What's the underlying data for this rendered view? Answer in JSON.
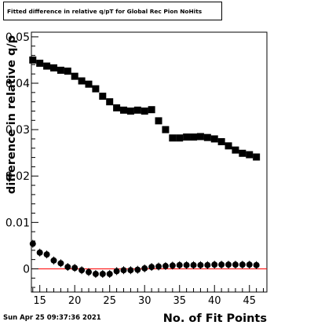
{
  "title": "Fitted difference in relative q/pT for Global Rec Pion NoHits",
  "timestamp": "Sun Apr 25 09:37:36 2021",
  "colors": {
    "zero_line": "#ff0000",
    "marker": "#000000"
  },
  "chart_data": {
    "type": "scatter",
    "title": "Fitted difference in relative q/pT for Global Rec Pion NoHits",
    "xlabel": "No. of Fit Points",
    "ylabel": "difference in relative q/p",
    "xlim": [
      13.8,
      47.5
    ],
    "ylim": [
      -0.005,
      0.051
    ],
    "x_ticks": [
      15,
      20,
      25,
      30,
      35,
      40,
      45
    ],
    "x_tick_labels": [
      "15",
      "20",
      "25",
      "30",
      "35",
      "40",
      "45"
    ],
    "y_ticks": [
      0,
      0.01,
      0.02,
      0.03,
      0.04,
      0.05
    ],
    "y_tick_labels": [
      "0",
      "0.01",
      "0.02",
      "0.03",
      "0.04",
      "0.05"
    ],
    "zero_line": 0,
    "grid": false,
    "series": [
      {
        "marker": "square",
        "x": [
          14,
          15,
          16,
          17,
          18,
          19,
          20,
          21,
          22,
          23,
          24,
          25,
          26,
          27,
          28,
          29,
          30,
          31,
          32,
          33,
          34,
          35,
          36,
          37,
          38,
          39,
          40,
          41,
          42,
          43,
          44,
          45,
          46
        ],
        "y": [
          0.045,
          0.0443,
          0.0437,
          0.0433,
          0.0428,
          0.0426,
          0.0415,
          0.0405,
          0.0398,
          0.0388,
          0.0372,
          0.036,
          0.0347,
          0.0342,
          0.034,
          0.0342,
          0.034,
          0.0343,
          0.0319,
          0.03,
          0.0282,
          0.0282,
          0.0284,
          0.0284,
          0.0285,
          0.0283,
          0.028,
          0.0274,
          0.0265,
          0.0256,
          0.0249,
          0.0246,
          0.0241
        ]
      },
      {
        "marker": "circle",
        "x": [
          14,
          15,
          16,
          17,
          18,
          19,
          20,
          21,
          22,
          23,
          24,
          25,
          26,
          27,
          28,
          29,
          30,
          31,
          32,
          33,
          34,
          35,
          36,
          37,
          38,
          39,
          40,
          41,
          42,
          43,
          44,
          45,
          46
        ],
        "y": [
          0.0054,
          0.0035,
          0.0031,
          0.0018,
          0.0012,
          0.0004,
          0.0002,
          -0.0003,
          -0.0007,
          -0.0011,
          -0.0011,
          -0.0011,
          -0.0005,
          -0.0003,
          -0.0003,
          -0.0002,
          0.0001,
          0.0004,
          0.0005,
          0.0006,
          0.0007,
          0.0008,
          0.0008,
          0.0008,
          0.0008,
          0.0008,
          0.0009,
          0.0009,
          0.0009,
          0.0009,
          0.0009,
          0.0009,
          0.0008
        ]
      }
    ]
  }
}
